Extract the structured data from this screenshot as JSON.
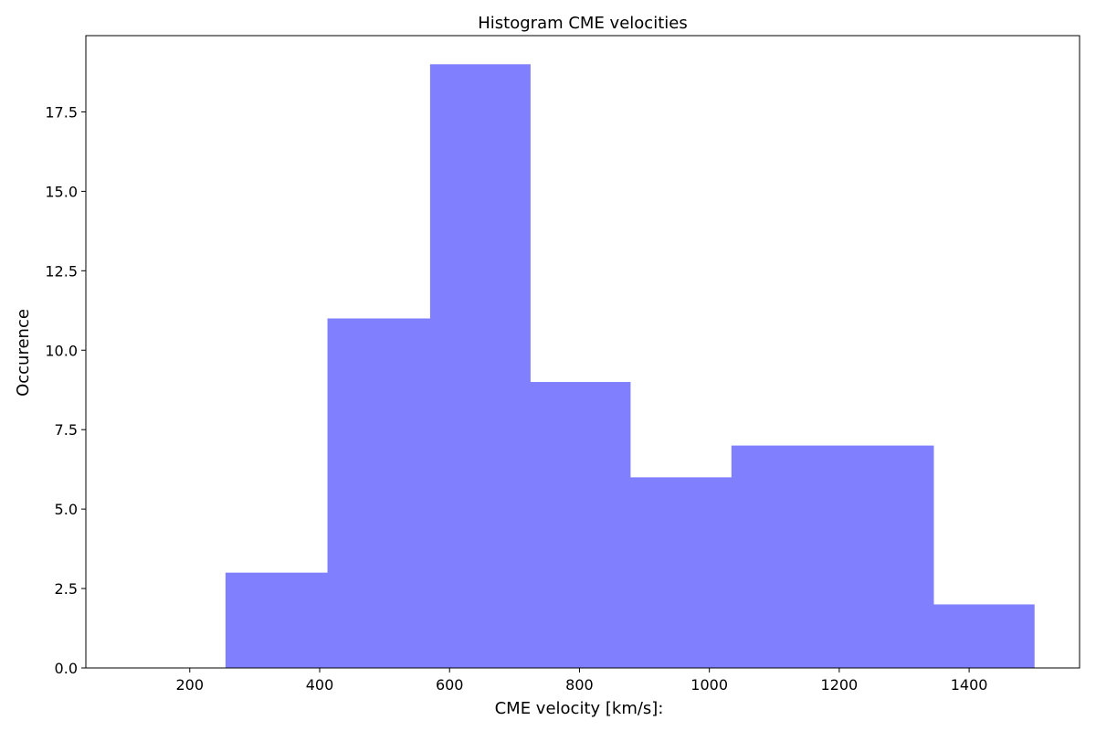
{
  "chart_data": {
    "type": "bar",
    "title": "Histogram CME velocities",
    "xlabel": "CME velocity [km/s]:",
    "ylabel": "Occurence",
    "bin_edges": [
      255,
      412,
      570,
      724,
      878,
      1034,
      1190,
      1345,
      1500
    ],
    "counts": [
      3,
      11,
      19,
      9,
      6,
      7,
      7,
      2
    ],
    "xlim": [
      40,
      1570
    ],
    "ylim": [
      0,
      19.9
    ],
    "xticks": [
      200,
      400,
      600,
      800,
      1000,
      1200,
      1400
    ],
    "xtick_labels": [
      "200",
      "400",
      "600",
      "800",
      "1000",
      "1200",
      "1400"
    ],
    "yticks": [
      0,
      2.5,
      5,
      7.5,
      10,
      12.5,
      15,
      17.5
    ],
    "ytick_labels": [
      "0.0",
      "2.5",
      "5.0",
      "7.5",
      "10.0",
      "12.5",
      "15.0",
      "17.5"
    ],
    "bar_color": "#8080ff",
    "grid": false,
    "legend": "none"
  }
}
